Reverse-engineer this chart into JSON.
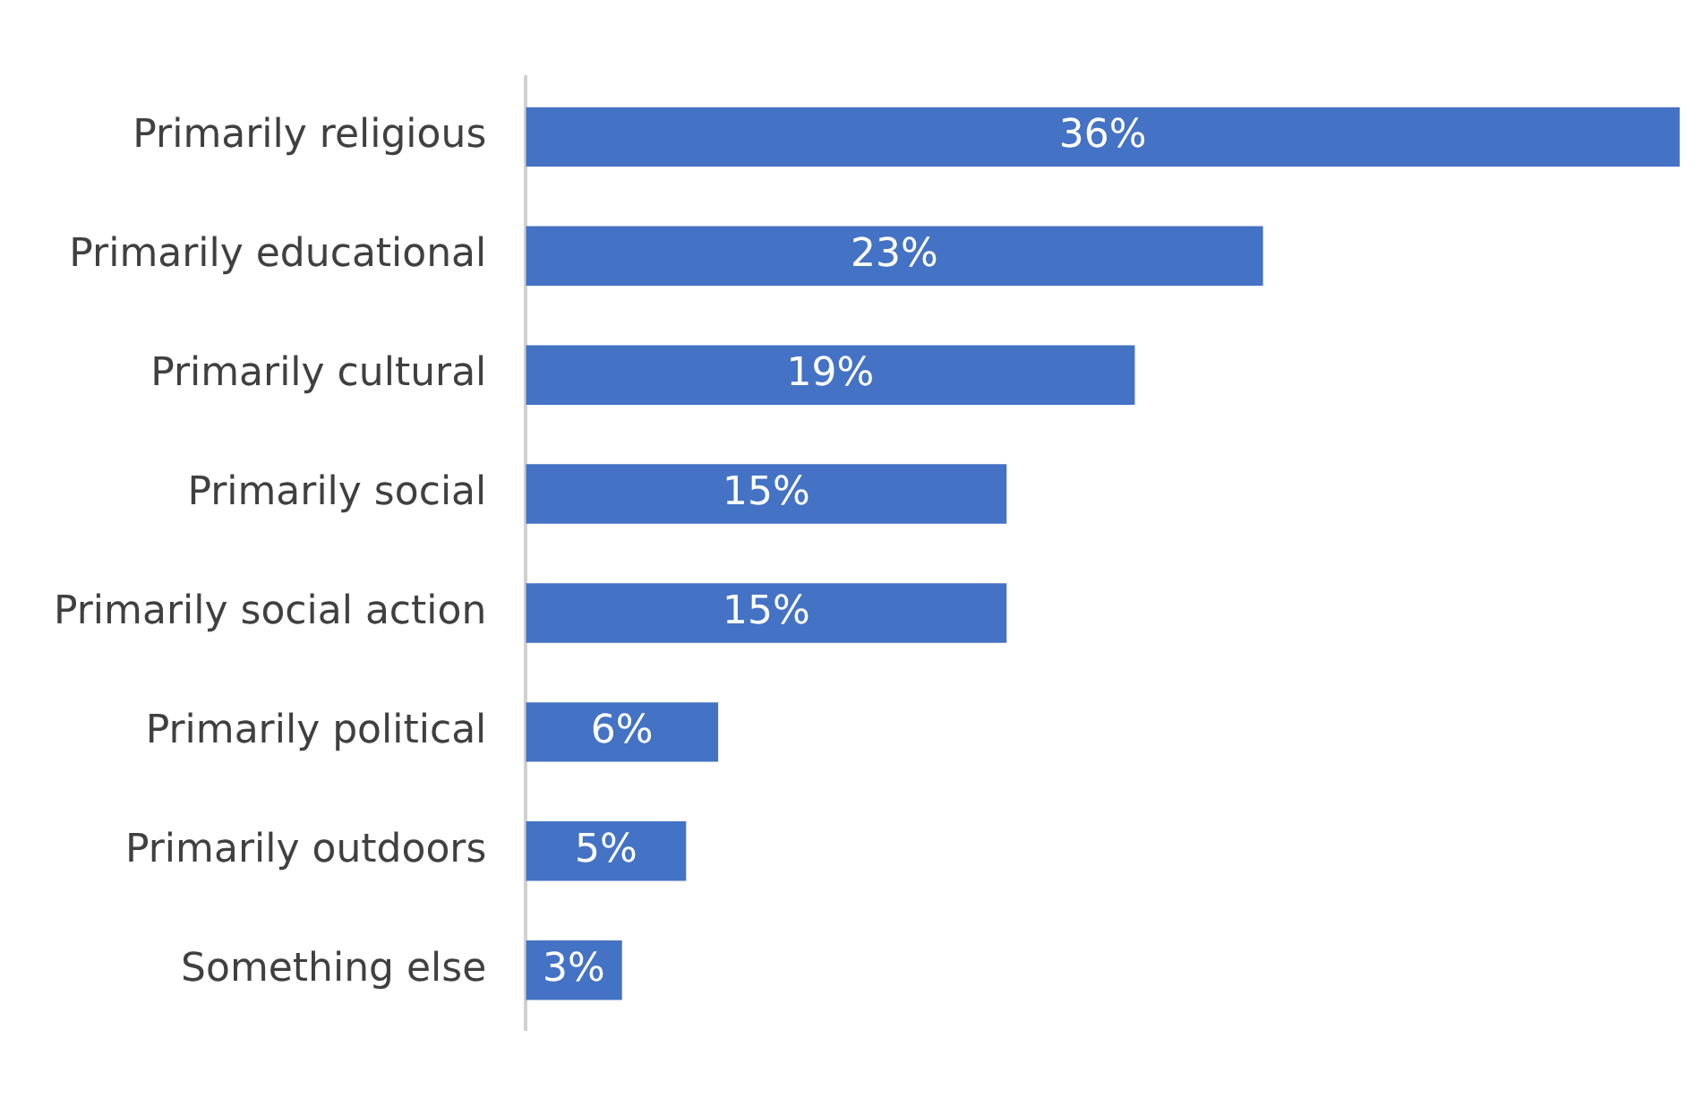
{
  "chart_data": {
    "type": "bar",
    "orientation": "horizontal",
    "relative": false,
    "categories": [
      "Primarily religious",
      "Primarily educational",
      "Primarily cultural",
      "Primarily social",
      "Primarily social action",
      "Primarily political",
      "Primarily outdoors",
      "Something else"
    ],
    "values": [
      36,
      23,
      19,
      15,
      15,
      6,
      5,
      3
    ],
    "value_labels": [
      "36%",
      "23%",
      "19%",
      "15%",
      "15%",
      "6%",
      "5%",
      "3%"
    ],
    "color": "#4472c4",
    "legend": false
  }
}
